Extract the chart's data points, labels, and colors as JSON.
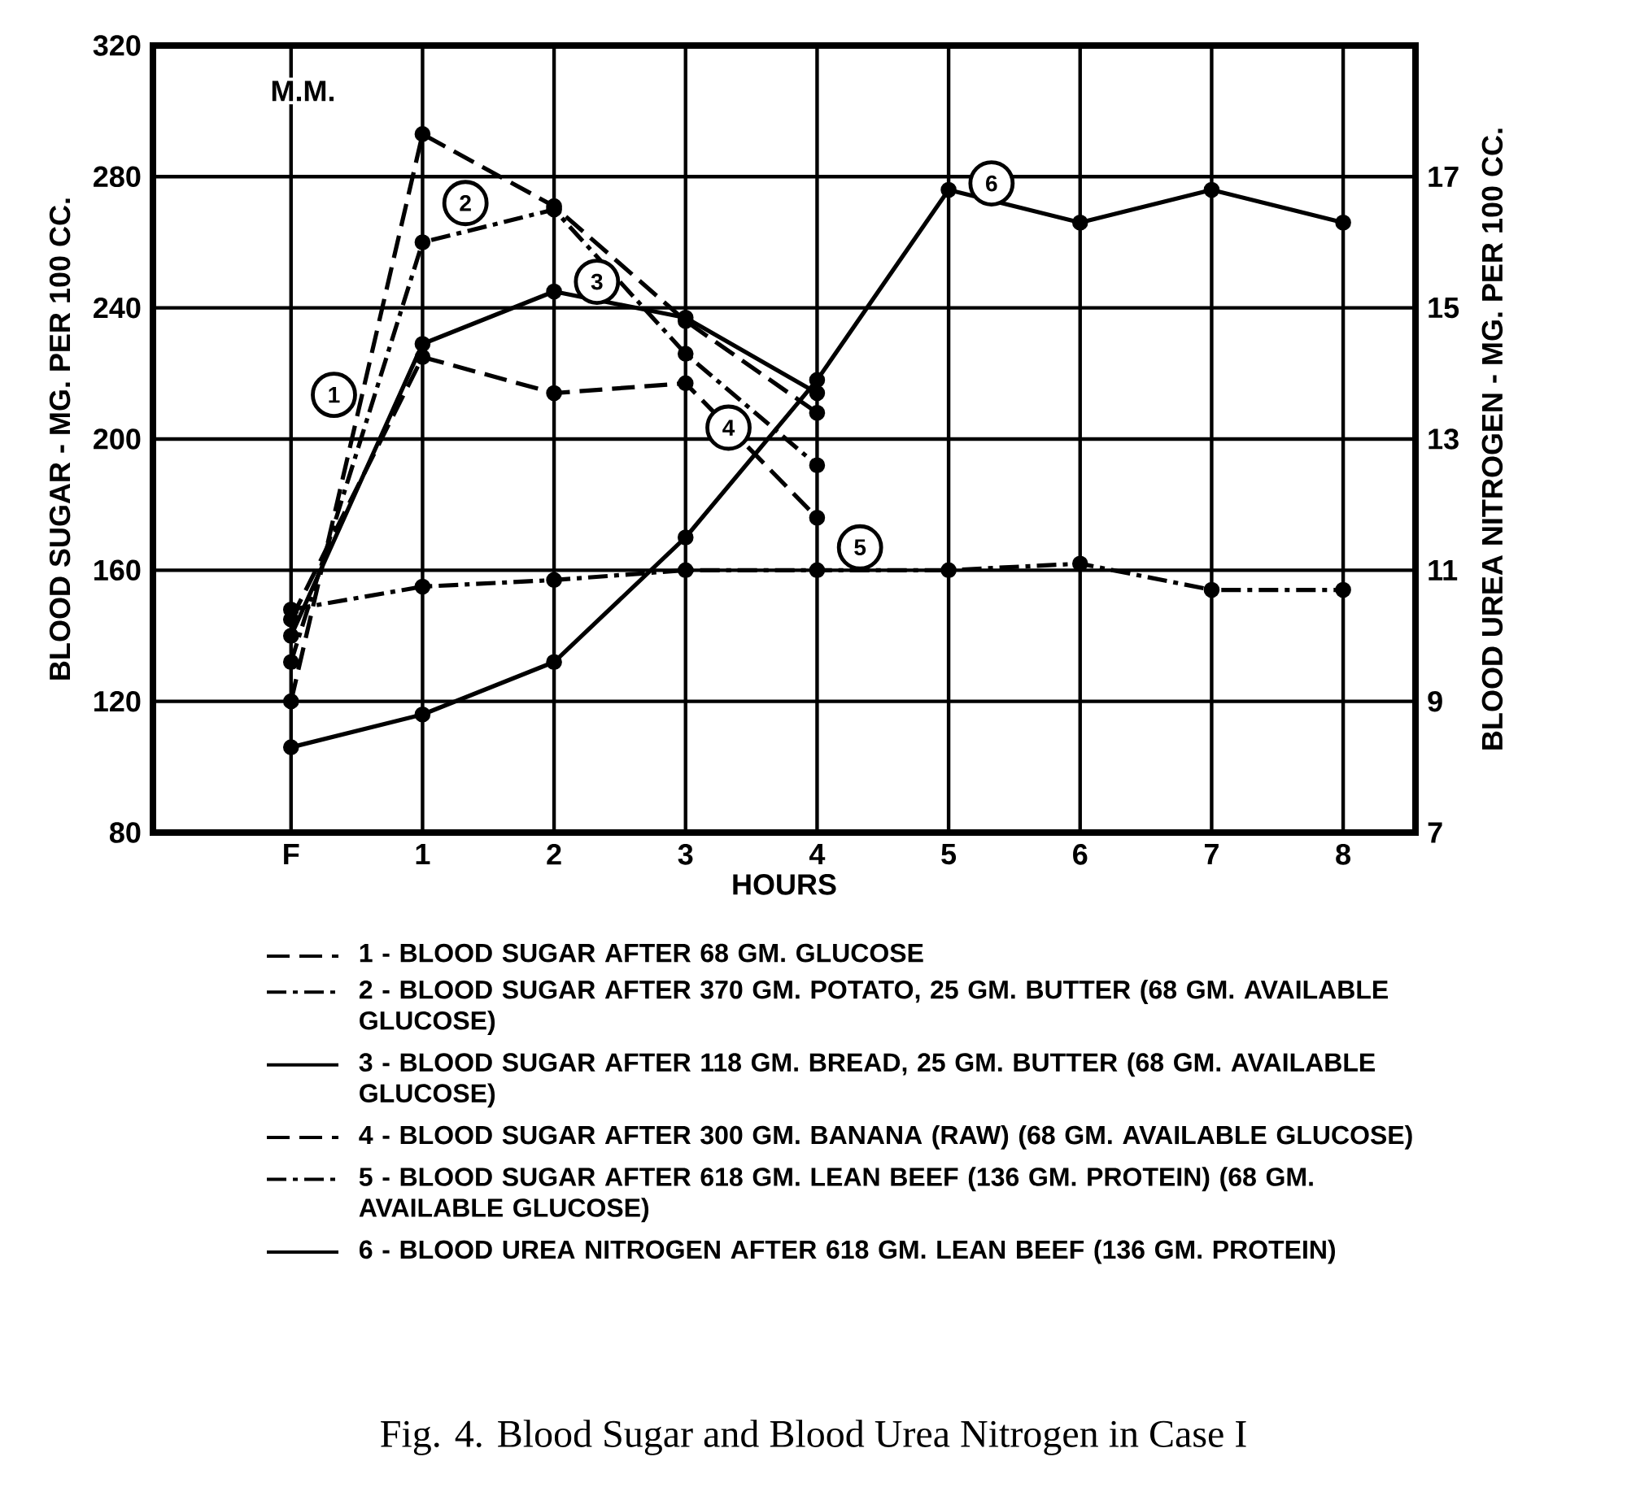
{
  "chart_data": {
    "type": "line",
    "title": "Fig. 4. Blood Sugar and Blood Urea Nitrogen in Case I",
    "xlabel": "HOURS",
    "ylabel": "BLOOD SUGAR - MG. PER 100 CC.",
    "y2label": "BLOOD UREA NITROGEN - MG. PER 100 CC.",
    "categories": [
      "F",
      "1",
      "2",
      "3",
      "4",
      "5",
      "6",
      "7",
      "8"
    ],
    "ylim": [
      80,
      320
    ],
    "yticks": [
      80,
      120,
      160,
      200,
      240,
      280,
      320
    ],
    "y2lim": [
      7,
      19
    ],
    "y2ticks": [
      7,
      9,
      11,
      13,
      15,
      17
    ],
    "grid": true,
    "legend": "bottom",
    "marker": "circle",
    "series": [
      {
        "name": "1 - BLOOD SUGAR AFTER 68 GM. GLUCOSE",
        "color": "#000000",
        "line_style": "dashed",
        "values": [
          120,
          293,
          271,
          236,
          208,
          null,
          null,
          null,
          null
        ]
      },
      {
        "name": "2 - BLOOD SUGAR AFTER 370 GM. POTATO, 25 GM. BUTTER (68 GM. AVAILABLE GLUCOSE)",
        "color": "#000000",
        "line_style": "dashdot",
        "values": [
          132,
          260,
          270,
          226,
          192,
          null,
          null,
          null,
          null
        ]
      },
      {
        "name": "3 - BLOOD SUGAR AFTER 118 GM. BREAD, 25 GM. BUTTER (68 GM. AVAILABLE GLUCOSE)",
        "color": "#000000",
        "line_style": "solid",
        "values": [
          140,
          229,
          245,
          237,
          214,
          null,
          null,
          null,
          null
        ]
      },
      {
        "name": "4 - BLOOD SUGAR AFTER 300 GM. BANANA (RAW) (68 GM. AVAILABLE GLUCOSE)",
        "color": "#000000",
        "line_style": "dashed",
        "values": [
          145,
          225,
          214,
          217,
          176,
          null,
          null,
          null,
          null
        ]
      },
      {
        "name": "5 - BLOOD SUGAR AFTER 618 GM. LEAN BEEF (136 GM. PROTEIN) (68 GM. AVAILABLE GLUCOSE)",
        "color": "#000000",
        "line_style": "dashdot",
        "values": [
          148,
          155,
          157,
          160,
          160,
          160,
          162,
          154,
          154
        ]
      },
      {
        "name": "6 - BLOOD UREA NITROGEN AFTER 618 GM. LEAN BEEF (136 GM. PROTEIN)",
        "color": "#000000",
        "line_style": "solid",
        "axis": "y2",
        "values": [
          8.3,
          8.8,
          9.6,
          11.5,
          13.9,
          16.8,
          16.3,
          16.8,
          16.3
        ]
      }
    ],
    "annotations": [
      "M.M.",
      "1",
      "2",
      "3",
      "4",
      "5",
      "6"
    ]
  }
}
